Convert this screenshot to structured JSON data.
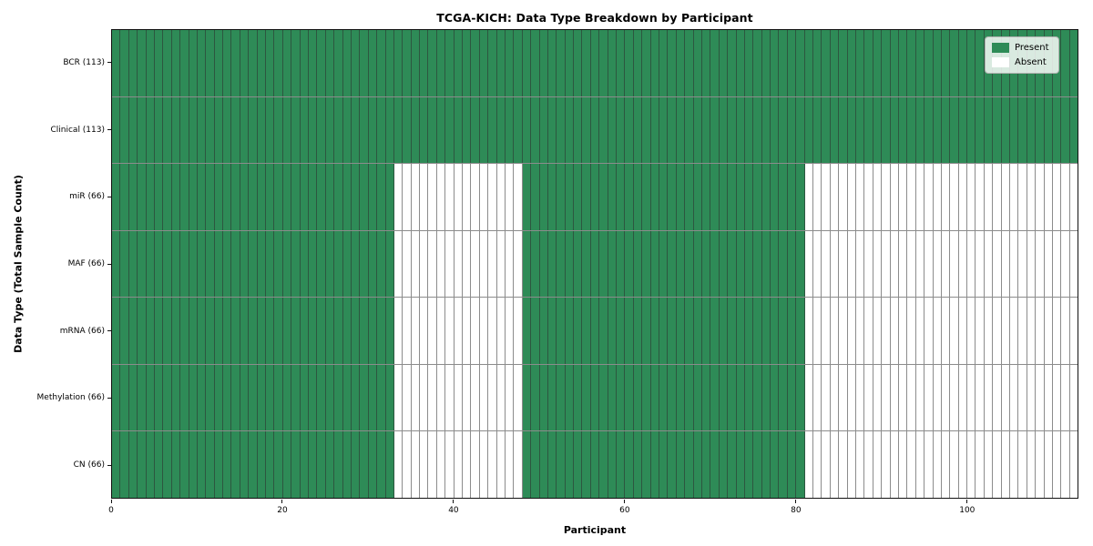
{
  "chart_data": {
    "type": "heatmap",
    "title": "TCGA-KICH: Data Type Breakdown by Participant",
    "xlabel": "Participant",
    "ylabel": "Data Type (Total Sample Count)",
    "x_range": [
      0,
      113
    ],
    "x_ticks": [
      0,
      20,
      40,
      60,
      80,
      100
    ],
    "n_participants": 113,
    "grid": true,
    "legend_position": "upper right",
    "rows": [
      {
        "label": "BCR (113)",
        "data_type": "BCR",
        "total": 113,
        "present_ranges": [
          [
            0,
            113
          ]
        ]
      },
      {
        "label": "Clinical (113)",
        "data_type": "Clinical",
        "total": 113,
        "present_ranges": [
          [
            0,
            113
          ]
        ]
      },
      {
        "label": "miR (66)",
        "data_type": "miR",
        "total": 66,
        "present_ranges": [
          [
            0,
            33
          ],
          [
            48,
            81
          ]
        ]
      },
      {
        "label": "MAF (66)",
        "data_type": "MAF",
        "total": 66,
        "present_ranges": [
          [
            0,
            33
          ],
          [
            48,
            81
          ]
        ]
      },
      {
        "label": "mRNA (66)",
        "data_type": "mRNA",
        "total": 66,
        "present_ranges": [
          [
            0,
            33
          ],
          [
            48,
            81
          ]
        ]
      },
      {
        "label": "Methylation (66)",
        "data_type": "Methylation",
        "total": 66,
        "present_ranges": [
          [
            0,
            33
          ],
          [
            48,
            81
          ]
        ]
      },
      {
        "label": "CN (66)",
        "data_type": "CN",
        "total": 66,
        "present_ranges": [
          [
            0,
            33
          ],
          [
            48,
            81
          ]
        ]
      }
    ],
    "legend": [
      {
        "label": "Present",
        "color": "#2e8b57"
      },
      {
        "label": "Absent",
        "color": "#ffffff"
      }
    ],
    "colors": {
      "present": "#2e8b57",
      "absent": "#ffffff",
      "grid_line": "rgba(45,45,45,0.55)",
      "spine": "#111111",
      "legend_bg": "rgba(255,255,255,0.82)"
    }
  }
}
